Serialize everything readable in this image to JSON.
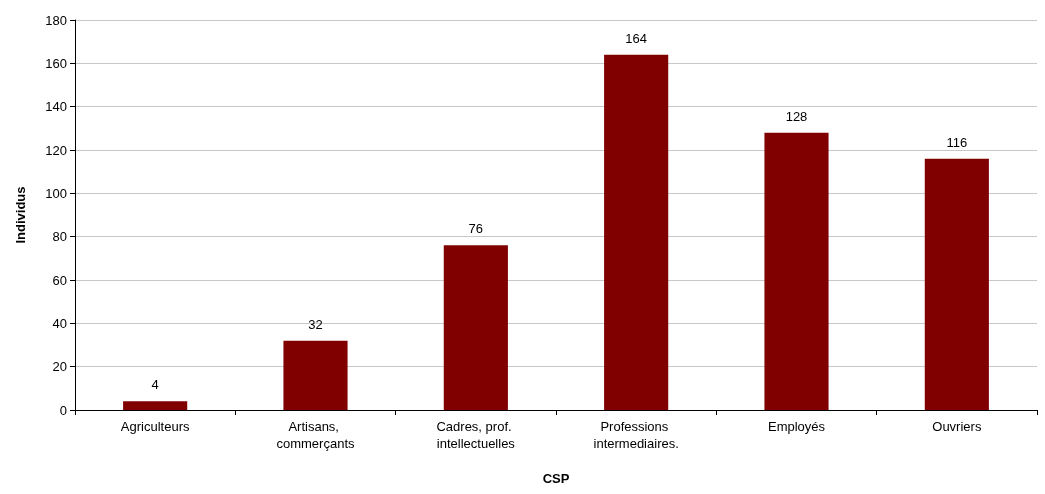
{
  "chart_data": {
    "type": "bar",
    "xlabel": "CSP",
    "ylabel": "Individus",
    "categories": [
      "Agriculteurs",
      "Artisans, commerçants",
      "Cadres, prof. intellectuelles",
      "Professions intermediaires.",
      "Employés",
      "Ouvriers"
    ],
    "values": [
      4,
      32,
      76,
      164,
      128,
      116
    ],
    "color": "#800000",
    "ylim": [
      0,
      180
    ],
    "yticks": [
      0,
      20,
      40,
      60,
      80,
      100,
      120,
      140,
      160,
      180
    ],
    "grid": "y",
    "data_labels": true
  }
}
